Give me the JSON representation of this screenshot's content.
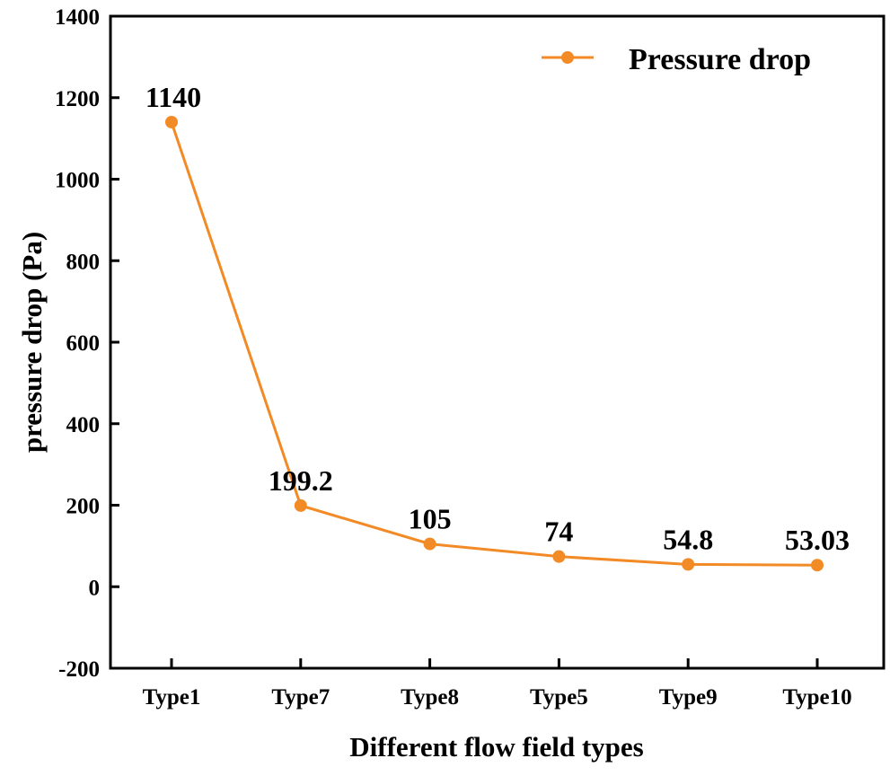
{
  "chart_data": {
    "type": "line",
    "title": "",
    "xlabel": "Different flow field types",
    "ylabel": "pressure drop (Pa)",
    "categories": [
      "Type1",
      "Type7",
      "Type8",
      "Type5",
      "Type9",
      "Type10"
    ],
    "series": [
      {
        "name": "Pressure drop",
        "values": [
          1140,
          199.2,
          105,
          74,
          54.8,
          53.03
        ],
        "data_labels": [
          "1140",
          "199.2",
          "105",
          "74",
          "54.8",
          "53.03"
        ],
        "color": "#F28A25",
        "marker": "circle"
      }
    ],
    "ylim": [
      -200,
      1400
    ],
    "yticks": [
      -200,
      0,
      200,
      400,
      600,
      800,
      1000,
      1200,
      1400
    ],
    "grid": false,
    "legend_position": "top-right"
  }
}
